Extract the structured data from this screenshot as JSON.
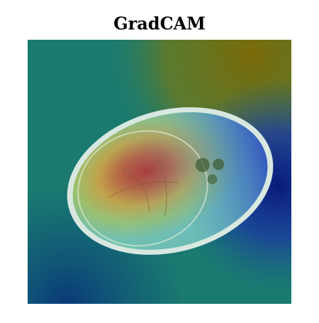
{
  "title": "GradCAM"
}
